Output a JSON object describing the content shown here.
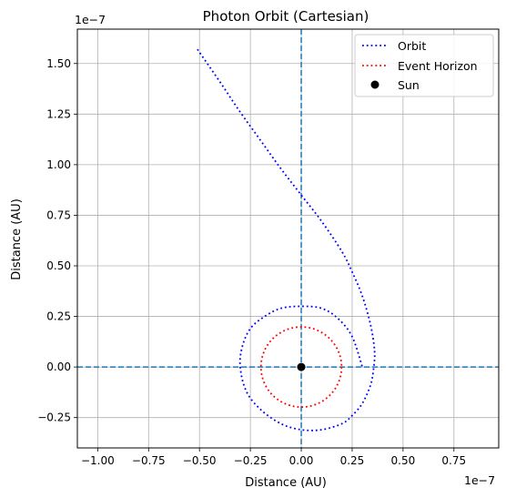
{
  "chart_data": {
    "type": "line",
    "title": "Photon Orbit (Cartesian)",
    "xlabel": "Distance (AU)",
    "ylabel": "Distance (AU)",
    "x_offset_label": "1e−7",
    "y_offset_label": "1e−7",
    "xlim": [
      -1.1,
      0.97
    ],
    "ylim": [
      -0.4,
      1.67
    ],
    "xticks": [
      -1.0,
      -0.75,
      -0.5,
      -0.25,
      0.0,
      0.25,
      0.5,
      0.75
    ],
    "yticks": [
      -0.25,
      0.0,
      0.25,
      0.5,
      0.75,
      1.0,
      1.25,
      1.5
    ],
    "xtick_labels": [
      "−1.00",
      "−0.75",
      "−0.50",
      "−0.25",
      "0.00",
      "0.25",
      "0.50",
      "0.75"
    ],
    "ytick_labels": [
      "−0.25",
      "0.00",
      "0.25",
      "0.50",
      "0.75",
      "1.00",
      "1.25",
      "1.50"
    ],
    "grid": true,
    "legend_position": "top-right",
    "series": [
      {
        "name": "Orbit",
        "style": "dotted",
        "color": "#0000ff",
        "x": [
          -0.51,
          -0.4,
          -0.3,
          -0.2,
          -0.1,
          0.0,
          0.1,
          0.2,
          0.25,
          0.3,
          0.34,
          0.36,
          0.355,
          0.34,
          0.3,
          0.25,
          0.2,
          0.1,
          0.0,
          -0.1,
          -0.2,
          -0.27,
          -0.3,
          -0.29,
          -0.25,
          -0.18,
          -0.1,
          0.0,
          0.1,
          0.18,
          0.25,
          0.3
        ],
        "y": [
          1.57,
          1.41,
          1.26,
          1.12,
          0.98,
          0.85,
          0.72,
          0.57,
          0.47,
          0.35,
          0.21,
          0.08,
          -0.01,
          -0.09,
          -0.18,
          -0.24,
          -0.28,
          -0.31,
          -0.31,
          -0.28,
          -0.21,
          -0.12,
          0.0,
          0.1,
          0.19,
          0.25,
          0.29,
          0.3,
          0.29,
          0.24,
          0.15,
          0.0
        ]
      },
      {
        "name": "Event Horizon",
        "style": "dotted",
        "color": "#ff0000",
        "circle": {
          "cx": 0.0,
          "cy": 0.0,
          "r": 0.198
        }
      },
      {
        "name": "Sun",
        "style": "marker",
        "color": "#000000",
        "x": [
          0.0
        ],
        "y": [
          0.0
        ]
      }
    ],
    "reference_lines": [
      {
        "orientation": "vertical",
        "value": 0.0,
        "color": "#1f77b4",
        "style": "dashed"
      },
      {
        "orientation": "horizontal",
        "value": 0.0,
        "color": "#1f77b4",
        "style": "dashed"
      }
    ]
  }
}
